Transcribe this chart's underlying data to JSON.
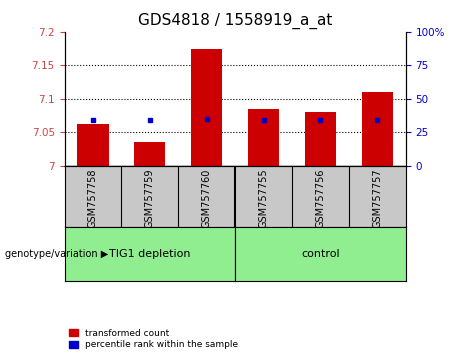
{
  "title": "GDS4818 / 1558919_a_at",
  "samples": [
    "GSM757758",
    "GSM757759",
    "GSM757760",
    "GSM757755",
    "GSM757756",
    "GSM757757"
  ],
  "red_values": [
    7.062,
    7.035,
    7.175,
    7.085,
    7.08,
    7.11
  ],
  "blue_values": [
    7.068,
    7.068,
    7.07,
    7.068,
    7.068,
    7.068
  ],
  "ymin": 7.0,
  "ymax": 7.2,
  "yticks": [
    7.0,
    7.05,
    7.1,
    7.15,
    7.2
  ],
  "ytick_labels": [
    "7",
    "7.05",
    "7.1",
    "7.15",
    "7.2"
  ],
  "y2min": 0,
  "y2max": 100,
  "y2ticks": [
    0,
    25,
    50,
    75,
    100
  ],
  "y2tick_labels": [
    "0",
    "25",
    "50",
    "75",
    "100%"
  ],
  "bar_color": "#CC0000",
  "dot_color": "#0000CC",
  "bar_width": 0.55,
  "title_fontsize": 11,
  "tick_fontsize": 7.5,
  "label_fontsize": 7,
  "sample_fontsize": 7,
  "group_fontsize": 8,
  "left_tick_color": "#CC4444",
  "right_tick_color": "#0000CC",
  "sample_bg_color": "#c8c8c8",
  "group1_color": "#90EE90",
  "group2_color": "#90EE90",
  "group1_label": "TIG1 depletion",
  "group2_label": "control",
  "genotype_label": "genotype/variation",
  "legend1_label": "transformed count",
  "legend2_label": "percentile rank within the sample"
}
